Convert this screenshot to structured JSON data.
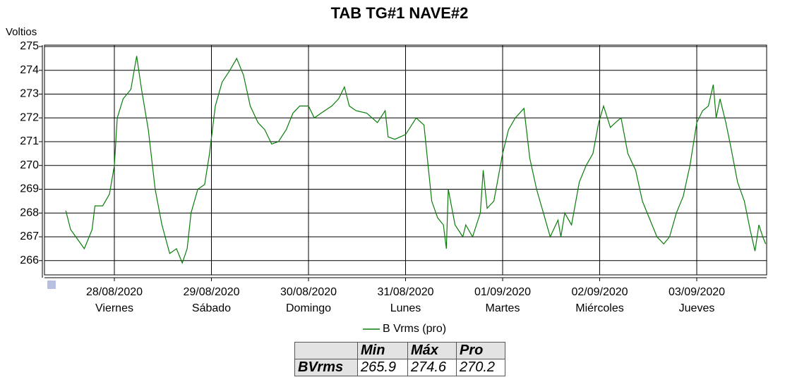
{
  "chart_data": {
    "type": "line",
    "title": "TAB TG#1 NAVE#2",
    "y_label": "Voltios",
    "x": [
      27.5,
      27.55,
      27.62,
      27.69,
      27.77,
      27.8,
      27.88,
      27.95,
      28.0,
      28.03,
      28.09,
      28.17,
      28.23,
      28.28,
      28.35,
      28.42,
      28.49,
      28.57,
      28.64,
      28.7,
      28.75,
      28.79,
      28.86,
      28.93,
      28.98,
      29.04,
      29.11,
      29.19,
      29.26,
      29.33,
      29.4,
      29.48,
      29.55,
      29.62,
      29.69,
      29.77,
      29.84,
      29.91,
      30.0,
      30.06,
      30.13,
      30.24,
      30.31,
      30.37,
      30.42,
      30.49,
      30.6,
      30.71,
      30.79,
      30.82,
      30.89,
      31.0,
      31.11,
      31.19,
      31.22,
      31.27,
      31.33,
      31.39,
      31.42,
      31.44,
      31.51,
      31.59,
      31.62,
      31.69,
      31.77,
      31.8,
      31.84,
      31.91,
      32.0,
      32.06,
      32.13,
      32.22,
      32.28,
      32.35,
      32.42,
      32.49,
      32.57,
      32.6,
      32.64,
      32.71,
      32.79,
      32.86,
      32.93,
      32.99,
      33.04,
      33.11,
      33.19,
      33.22,
      33.29,
      33.37,
      33.44,
      33.51,
      33.59,
      33.66,
      33.72,
      33.79,
      33.86,
      33.93,
      34.0,
      34.06,
      34.12,
      34.17,
      34.2,
      34.24,
      34.3,
      34.35,
      34.42,
      34.49,
      34.55,
      34.6,
      34.64,
      34.68,
      34.71
    ],
    "series": [
      {
        "name": "B Vrms (pro)",
        "color": "#0a7d0a",
        "values": [
          268.1,
          267.3,
          266.9,
          266.5,
          267.3,
          268.3,
          268.3,
          268.8,
          270.0,
          272.0,
          272.8,
          273.2,
          274.6,
          273.2,
          271.5,
          269.0,
          267.5,
          266.3,
          266.5,
          265.9,
          266.5,
          268.0,
          269.0,
          269.2,
          270.5,
          272.5,
          273.5,
          274.0,
          274.5,
          273.8,
          272.5,
          271.8,
          271.5,
          270.9,
          271.0,
          271.5,
          272.2,
          272.5,
          272.5,
          272.0,
          272.2,
          272.5,
          272.8,
          273.3,
          272.5,
          272.3,
          272.2,
          271.8,
          272.3,
          271.2,
          271.1,
          271.3,
          272.0,
          271.7,
          270.5,
          268.5,
          267.8,
          267.5,
          266.5,
          269.0,
          267.5,
          267.0,
          267.5,
          267.0,
          268.0,
          269.8,
          268.2,
          268.5,
          270.5,
          271.5,
          272.0,
          272.4,
          270.3,
          269.0,
          268.0,
          267.0,
          267.7,
          267.0,
          268.0,
          267.5,
          269.3,
          270.0,
          270.5,
          271.8,
          272.5,
          271.6,
          271.9,
          272.0,
          270.5,
          269.8,
          268.5,
          267.8,
          267.0,
          266.7,
          267.0,
          268.0,
          268.7,
          270.0,
          271.8,
          272.3,
          272.5,
          273.4,
          272.0,
          272.8,
          271.8,
          270.8,
          269.3,
          268.5,
          267.3,
          266.4,
          267.5,
          267.0,
          266.7
        ]
      }
    ],
    "xlim": [
      27.28,
      34.72
    ],
    "xticks": [
      {
        "value": 28,
        "label": "28/08/2020"
      },
      {
        "value": 29,
        "label": "29/08/2020"
      },
      {
        "value": 30,
        "label": "30/08/2020"
      },
      {
        "value": 31,
        "label": "31/08/2020"
      },
      {
        "value": 32,
        "label": "01/09/2020"
      },
      {
        "value": 33,
        "label": "02/09/2020"
      },
      {
        "value": 34,
        "label": "03/09/2020"
      }
    ],
    "xtick_weekdays": [
      "Viernes",
      "Sábado",
      "Domingo",
      "Lunes",
      "Martes",
      "Miércoles",
      "Jueves"
    ],
    "ylim": [
      265.4,
      275.06
    ],
    "yticks": [
      266,
      267,
      268,
      269,
      270,
      271,
      272,
      273,
      274,
      275
    ],
    "grid": true
  },
  "table": {
    "header": [
      "Min",
      "Máx",
      "Pro"
    ],
    "rows": [
      [
        "BVrms",
        "265.9",
        "274.6",
        "270.2"
      ]
    ]
  }
}
